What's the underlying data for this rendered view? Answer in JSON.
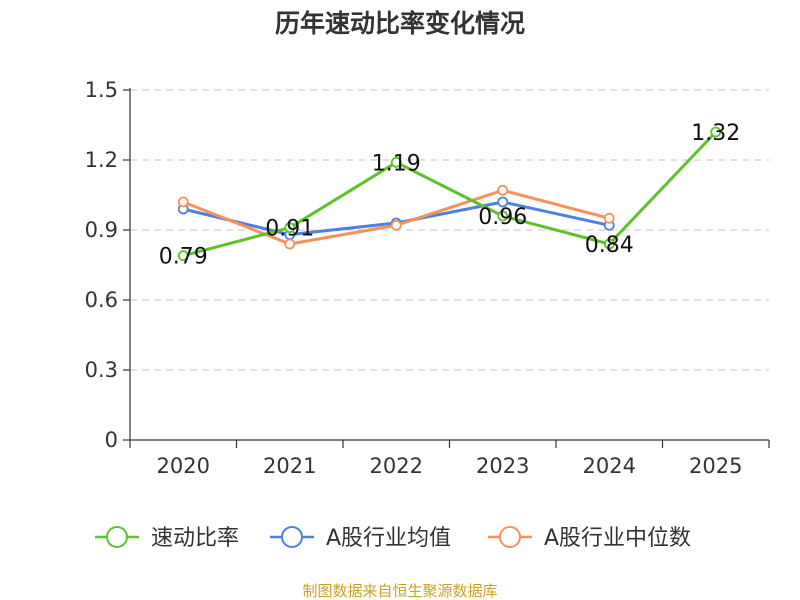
{
  "chart_data": {
    "type": "line",
    "title": "历年速动比率变化情况",
    "categories": [
      "2020",
      "2021",
      "2022",
      "2023",
      "2024",
      "2025"
    ],
    "ylim": [
      0,
      1.5
    ],
    "yticks": [
      "0",
      "0.3",
      "0.6",
      "0.9",
      "1.2",
      "1.5"
    ],
    "ytick_values": [
      0,
      0.3,
      0.6,
      0.9,
      1.2,
      1.5
    ],
    "grid": true,
    "legend_position": "bottom",
    "series": [
      {
        "name": "速动比率",
        "color": "#5cc12a",
        "values": [
          0.79,
          0.91,
          1.19,
          0.96,
          0.84,
          1.32
        ],
        "labels": [
          "0.79",
          "0.91",
          "1.19",
          "0.96",
          "0.84",
          "1.32"
        ],
        "show_labels": true
      },
      {
        "name": "A股行业均值",
        "color": "#4f80e0",
        "values": [
          0.99,
          0.88,
          0.93,
          1.02,
          0.92,
          null
        ],
        "show_labels": false
      },
      {
        "name": "A股行业中位数",
        "color": "#f5925b",
        "values": [
          1.02,
          0.84,
          0.92,
          1.07,
          0.95,
          null
        ],
        "show_labels": false
      }
    ]
  },
  "footer": {
    "source": "制图数据来自恒生聚源数据库"
  }
}
